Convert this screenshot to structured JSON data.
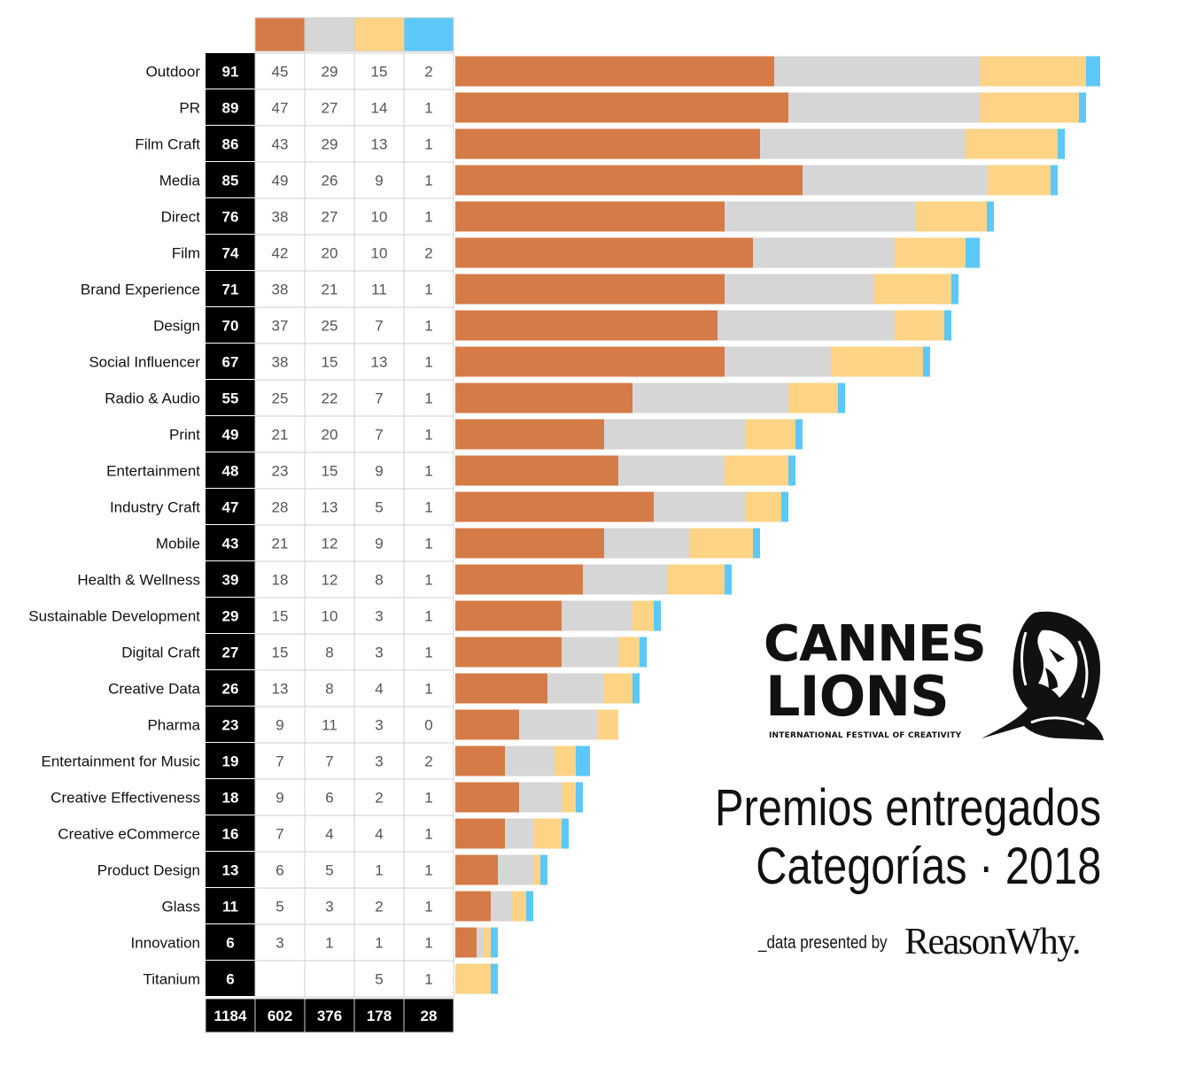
{
  "colors": {
    "gold": "#D47B48",
    "silver": "#D6D6D6",
    "bronze": "#FDD385",
    "grandprix": "#5BC8F8",
    "total_bg": "#000000"
  },
  "chart_data": {
    "type": "bar",
    "orientation": "horizontal",
    "stacked": true,
    "categories": [
      "Outdoor",
      "PR",
      "Film Craft",
      "Media",
      "Direct",
      "Film",
      "Brand Experience",
      "Design",
      "Social Influencer",
      "Radio & Audio",
      "Print",
      "Entertainment",
      "Industry Craft",
      "Mobile",
      "Health & Wellness",
      "Sustainable Development",
      "Digital Craft",
      "Creative Data",
      "Pharma",
      "Entertainment for Music",
      "Creative Effectiveness",
      "Creative eCommerce",
      "Product Design",
      "Glass",
      "Innovation",
      "Titanium"
    ],
    "totals": [
      91,
      89,
      86,
      85,
      76,
      74,
      71,
      70,
      67,
      55,
      49,
      48,
      47,
      43,
      39,
      29,
      27,
      26,
      23,
      19,
      18,
      16,
      13,
      11,
      6,
      6
    ],
    "series": [
      {
        "color": "#D47B48",
        "values": [
          45,
          47,
          43,
          49,
          38,
          42,
          38,
          37,
          38,
          25,
          21,
          23,
          28,
          21,
          18,
          15,
          15,
          13,
          9,
          7,
          9,
          7,
          6,
          5,
          3,
          null
        ]
      },
      {
        "color": "#D6D6D6",
        "values": [
          29,
          27,
          29,
          26,
          27,
          20,
          21,
          25,
          15,
          22,
          20,
          15,
          13,
          12,
          12,
          10,
          8,
          8,
          11,
          7,
          6,
          4,
          5,
          3,
          1,
          null
        ]
      },
      {
        "color": "#FDD385",
        "values": [
          15,
          14,
          13,
          9,
          10,
          10,
          11,
          7,
          13,
          7,
          7,
          9,
          5,
          9,
          8,
          3,
          3,
          4,
          3,
          3,
          2,
          4,
          1,
          2,
          1,
          5
        ]
      },
      {
        "color": "#5BC8F8",
        "values": [
          2,
          1,
          1,
          1,
          1,
          2,
          1,
          1,
          1,
          1,
          1,
          1,
          1,
          1,
          1,
          1,
          1,
          1,
          0,
          2,
          1,
          1,
          1,
          1,
          1,
          1
        ]
      }
    ],
    "column_totals": {
      "total": 1184,
      "gold": 602,
      "silver": 376,
      "bronze": 178,
      "grandprix": 28
    },
    "legend": "color swatches above table columns",
    "grid": false
  },
  "logo": {
    "line1": "CANNES",
    "line2": "LIONS",
    "tagline": "INTERNATIONAL FESTIVAL OF CREATIVITY",
    "icon": "lion-head-icon"
  },
  "title": {
    "line1": "Premios entregados",
    "line2": "Categorías · 2018"
  },
  "credit": {
    "prefix": "_data presented by",
    "brand": "ReasonWhy."
  }
}
